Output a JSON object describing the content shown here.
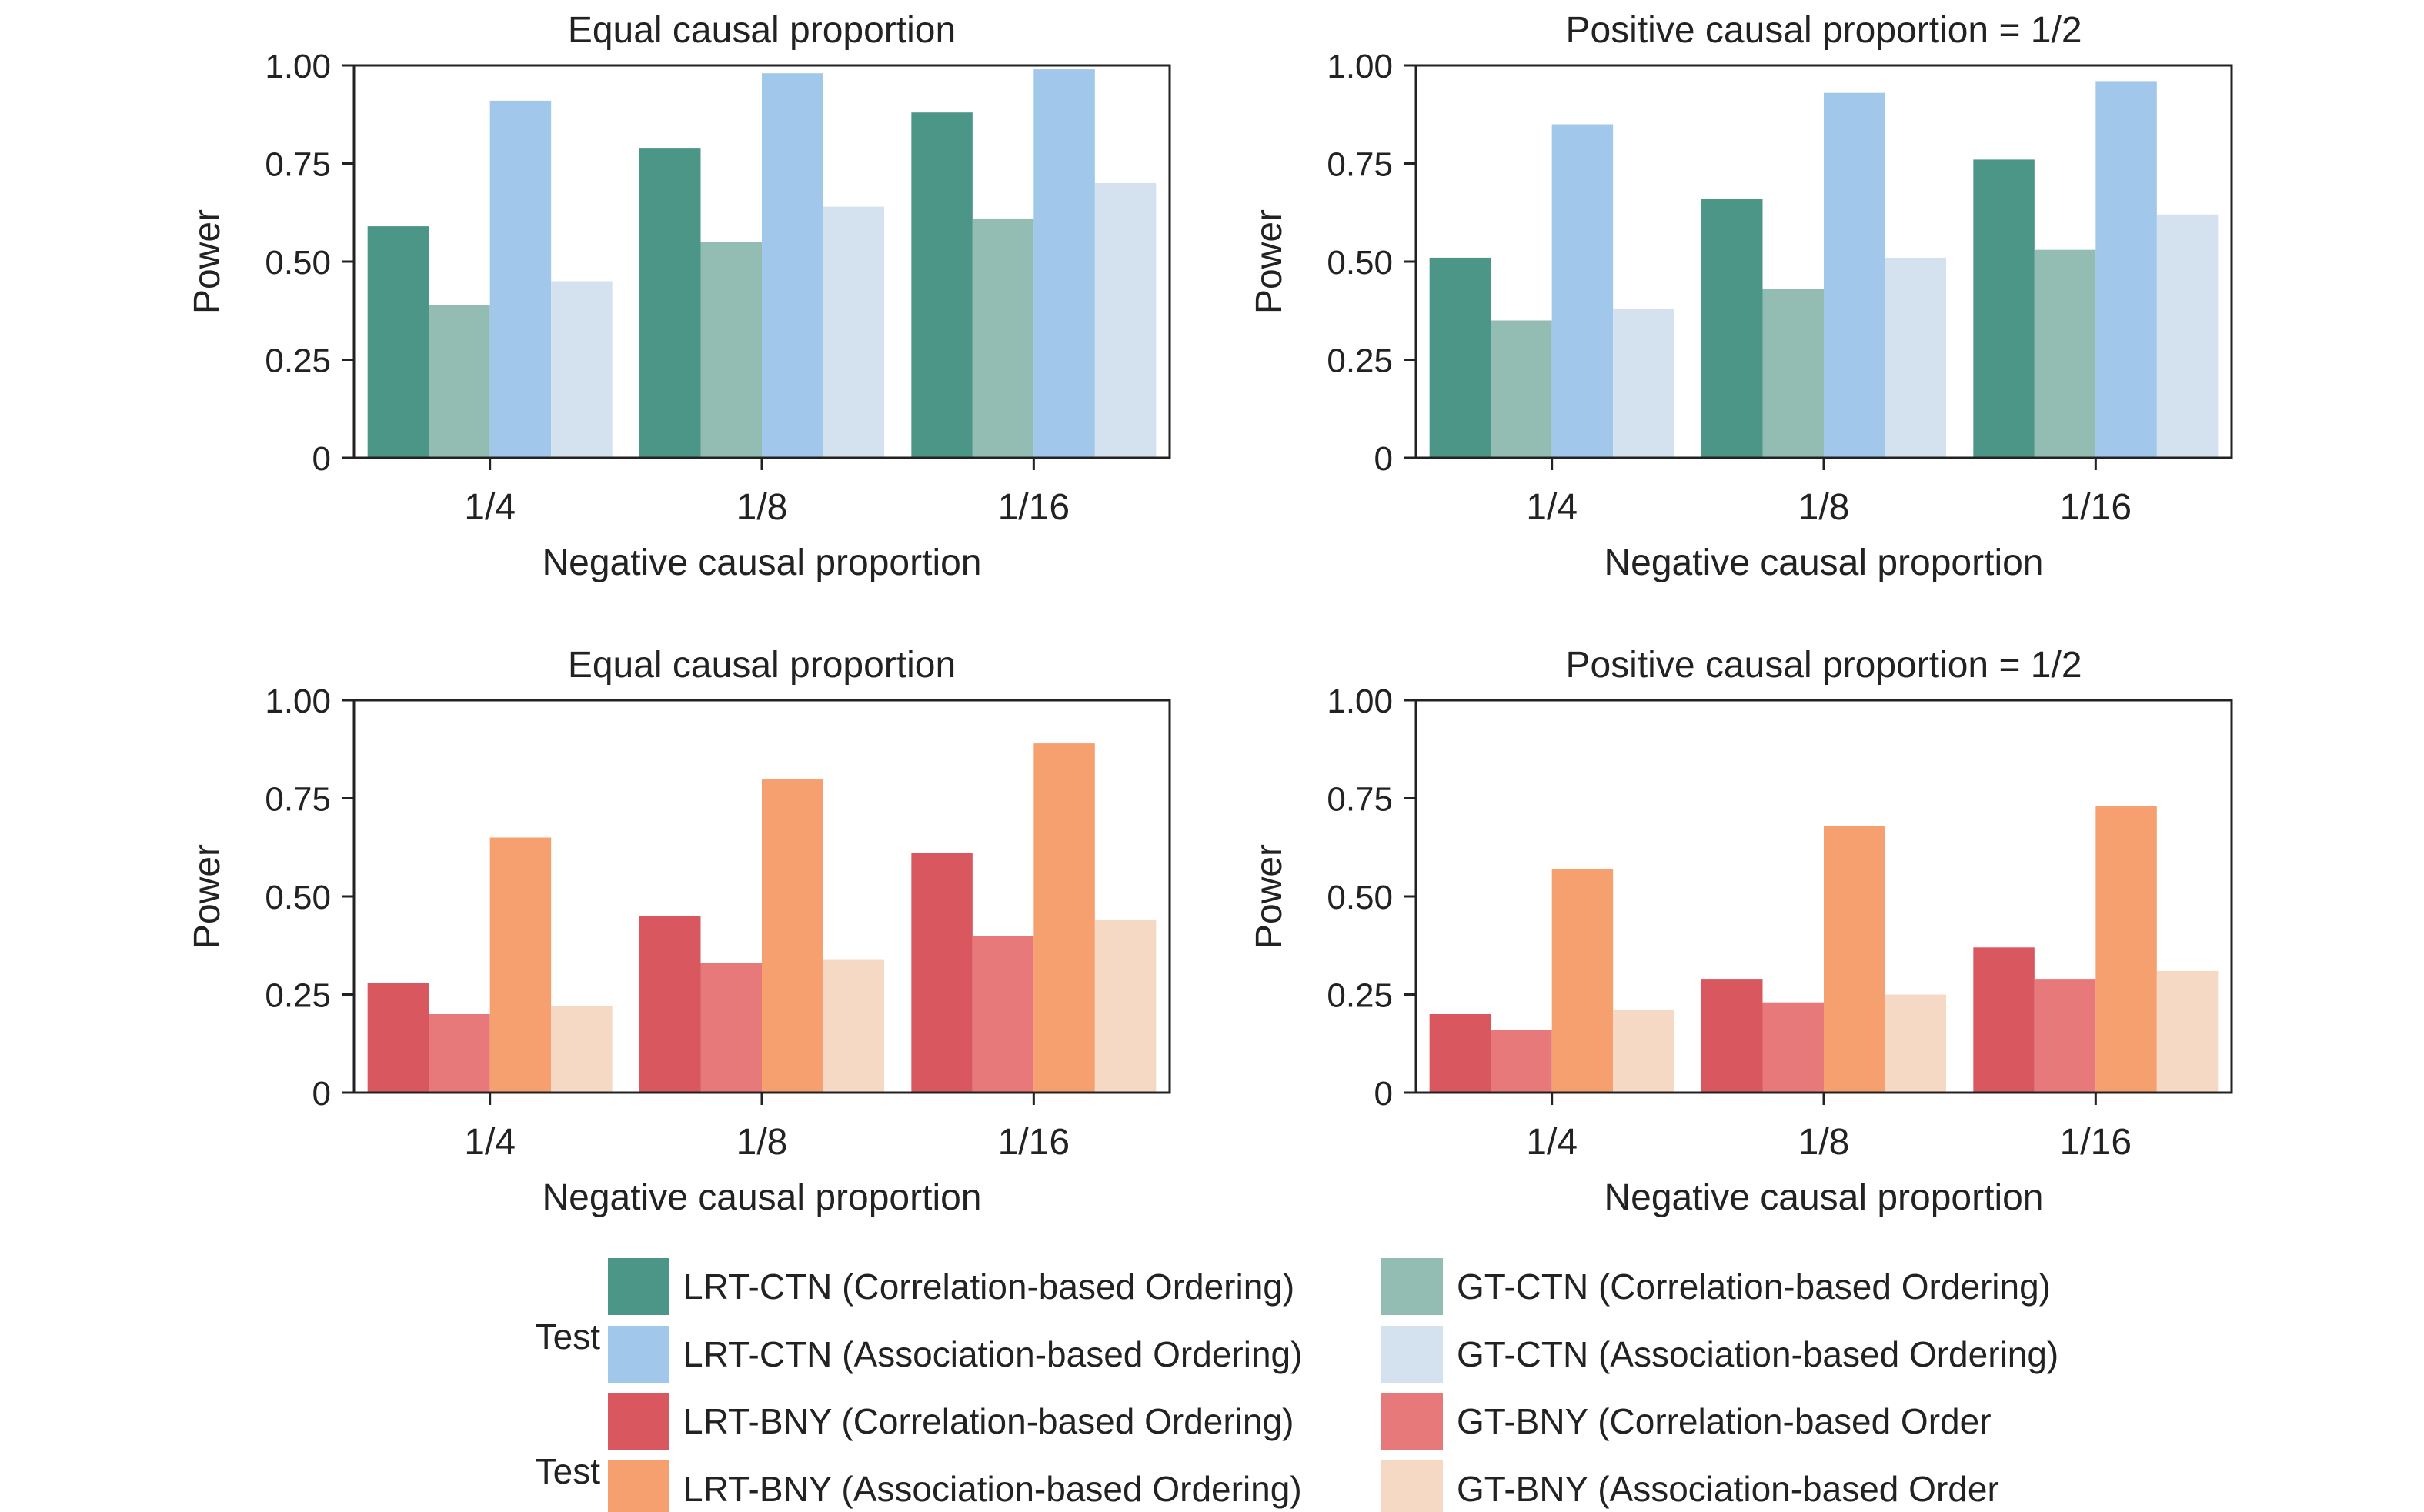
{
  "chart_data": [
    {
      "type": "bar",
      "title": "Equal causal proportion",
      "xlabel": "Negative causal proportion",
      "ylabel": "Power",
      "ylim": [
        0,
        1
      ],
      "yticks": [
        "0",
        "0.25",
        "0.50",
        "0.75",
        "1.00"
      ],
      "categories": [
        "1/4",
        "1/8",
        "1/16"
      ],
      "series": [
        {
          "name": "LRT-CTN (Correlation-based Ordering)",
          "color": "#4c9688",
          "values": [
            0.59,
            0.79,
            0.88
          ]
        },
        {
          "name": "GT-CTN (Correlation-based Ordering)",
          "color": "#93bdb2",
          "values": [
            0.39,
            0.55,
            0.61
          ]
        },
        {
          "name": "LRT-CTN (Association-based Ordering)",
          "color": "#a1c7ea",
          "values": [
            0.91,
            0.98,
            0.99
          ]
        },
        {
          "name": "GT-CTN (Association-based Ordering)",
          "color": "#d3e2ee",
          "values": [
            0.45,
            0.64,
            0.7
          ]
        }
      ]
    },
    {
      "type": "bar",
      "title": "Positive causal proportion = 1/2",
      "xlabel": "Negative causal proportion",
      "ylabel": "Power",
      "ylim": [
        0,
        1
      ],
      "yticks": [
        "0",
        "0.25",
        "0.50",
        "0.75",
        "1.00"
      ],
      "categories": [
        "1/4",
        "1/8",
        "1/16"
      ],
      "series": [
        {
          "name": "LRT-CTN (Correlation-based Ordering)",
          "color": "#4c9688",
          "values": [
            0.51,
            0.66,
            0.76
          ]
        },
        {
          "name": "GT-CTN (Correlation-based Ordering)",
          "color": "#93bdb2",
          "values": [
            0.35,
            0.43,
            0.53
          ]
        },
        {
          "name": "LRT-CTN (Association-based Ordering)",
          "color": "#a1c7ea",
          "values": [
            0.85,
            0.93,
            0.96
          ]
        },
        {
          "name": "GT-CTN (Association-based Ordering)",
          "color": "#d3e2ee",
          "values": [
            0.38,
            0.51,
            0.62
          ]
        }
      ]
    },
    {
      "type": "bar",
      "title": "Equal causal proportion",
      "xlabel": "Negative causal proportion",
      "ylabel": "Power",
      "ylim": [
        0,
        1
      ],
      "yticks": [
        "0",
        "0.25",
        "0.50",
        "0.75",
        "1.00"
      ],
      "categories": [
        "1/4",
        "1/8",
        "1/16"
      ],
      "series": [
        {
          "name": "LRT-BNY (Correlation-based Ordering)",
          "color": "#d9575e",
          "values": [
            0.28,
            0.45,
            0.61
          ]
        },
        {
          "name": "GT-BNY (Correlation-based Order",
          "color": "#e7797b",
          "values": [
            0.2,
            0.33,
            0.4
          ]
        },
        {
          "name": "LRT-BNY (Association-based Ordering)",
          "color": "#f6a06f",
          "values": [
            0.65,
            0.8,
            0.89
          ]
        },
        {
          "name": "GT-BNY (Association-based Order",
          "color": "#f6d9c4",
          "values": [
            0.22,
            0.34,
            0.44
          ]
        }
      ]
    },
    {
      "type": "bar",
      "title": "Positive causal proportion = 1/2",
      "xlabel": "Negative causal proportion",
      "ylabel": "Power",
      "ylim": [
        0,
        1
      ],
      "yticks": [
        "0",
        "0.25",
        "0.50",
        "0.75",
        "1.00"
      ],
      "categories": [
        "1/4",
        "1/8",
        "1/16"
      ],
      "series": [
        {
          "name": "LRT-BNY (Correlation-based Ordering)",
          "color": "#d9575e",
          "values": [
            0.2,
            0.29,
            0.37
          ]
        },
        {
          "name": "GT-BNY (Correlation-based Order",
          "color": "#e7797b",
          "values": [
            0.16,
            0.23,
            0.29
          ]
        },
        {
          "name": "LRT-BNY (Association-based Ordering)",
          "color": "#f6a06f",
          "values": [
            0.57,
            0.68,
            0.73
          ]
        },
        {
          "name": "GT-BNY (Association-based Order",
          "color": "#f6d9c4",
          "values": [
            0.21,
            0.25,
            0.31
          ]
        }
      ]
    }
  ],
  "legend": {
    "groups": [
      {
        "title": "Test",
        "entries": [
          {
            "label": "LRT-CTN (Correlation-based Ordering)",
            "color": "#4c9688"
          },
          {
            "label": "GT-CTN (Correlation-based Ordering)",
            "color": "#93bdb2"
          },
          {
            "label": "LRT-CTN (Association-based Ordering)",
            "color": "#a1c7ea"
          },
          {
            "label": "GT-CTN (Association-based Ordering)",
            "color": "#d3e2ee"
          }
        ]
      },
      {
        "title": "Test",
        "entries": [
          {
            "label": "LRT-BNY (Correlation-based Ordering)",
            "color": "#d9575e"
          },
          {
            "label": "GT-BNY (Correlation-based Order",
            "color": "#e7797b"
          },
          {
            "label": "LRT-BNY (Association-based Ordering)",
            "color": "#f6a06f"
          },
          {
            "label": "GT-BNY (Association-based Order",
            "color": "#f6d9c4"
          }
        ]
      }
    ]
  }
}
